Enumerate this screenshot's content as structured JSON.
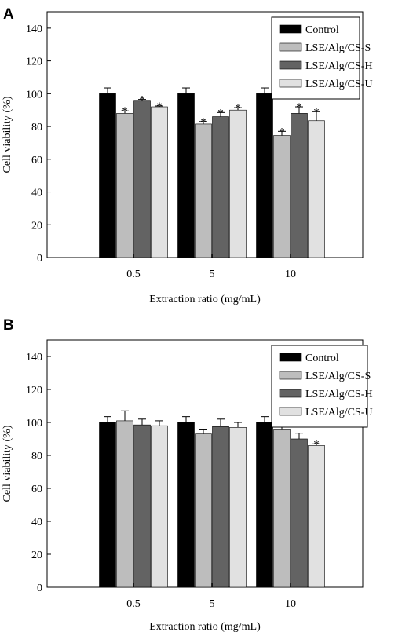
{
  "chart_data": [
    {
      "panel_label": "A",
      "type": "bar",
      "categories": [
        "0.5",
        "5",
        "10"
      ],
      "series": [
        {
          "name": "Control",
          "color": "#000000",
          "values": [
            100,
            100,
            100
          ],
          "errors": [
            3.5,
            3.5,
            3.5
          ],
          "significant": [
            false,
            false,
            false
          ]
        },
        {
          "name": "LSE/Alg/CS-S",
          "color": "#bdbdbd",
          "values": [
            88,
            81.5,
            74.5
          ],
          "errors": [
            1.5,
            1.5,
            2.5
          ],
          "significant": [
            true,
            true,
            true
          ]
        },
        {
          "name": "LSE/Alg/CS-H",
          "color": "#636363",
          "values": [
            95.5,
            86,
            88
          ],
          "errors": [
            1,
            2.5,
            4
          ],
          "significant": [
            true,
            true,
            true
          ]
        },
        {
          "name": "LSE/Alg/CS-U",
          "color": "#e1e1e1",
          "values": [
            92,
            90,
            83.5
          ],
          "errors": [
            0.5,
            1.5,
            5.5
          ],
          "significant": [
            true,
            true,
            true
          ]
        }
      ],
      "significance_marker": "*",
      "xlabel": "Extraction ratio (mg/mL)",
      "ylabel": "Cell viability (%)",
      "ylim": [
        0,
        150
      ],
      "yticks": [
        0,
        20,
        40,
        60,
        80,
        100,
        120,
        140
      ],
      "grid": false,
      "legend_position": "top-right"
    },
    {
      "panel_label": "B",
      "type": "bar",
      "categories": [
        "0.5",
        "5",
        "10"
      ],
      "series": [
        {
          "name": "Control",
          "color": "#000000",
          "values": [
            100,
            100,
            100
          ],
          "errors": [
            3.5,
            3.5,
            3.5
          ],
          "significant": [
            false,
            false,
            false
          ]
        },
        {
          "name": "LSE/Alg/CS-S",
          "color": "#bdbdbd",
          "values": [
            101,
            93,
            95.5
          ],
          "errors": [
            6,
            2.5,
            8.5
          ],
          "significant": [
            false,
            false,
            false
          ]
        },
        {
          "name": "LSE/Alg/CS-H",
          "color": "#636363",
          "values": [
            98.5,
            97.5,
            90
          ],
          "errors": [
            3.5,
            4.5,
            3.5
          ],
          "significant": [
            false,
            false,
            false
          ]
        },
        {
          "name": "LSE/Alg/CS-U",
          "color": "#e1e1e1",
          "values": [
            98,
            97,
            86
          ],
          "errors": [
            3,
            3,
            1
          ],
          "significant": [
            false,
            false,
            true
          ]
        }
      ],
      "significance_marker": "*",
      "xlabel": "Extraction ratio (mg/mL)",
      "ylabel": "Cell viability (%)",
      "ylim": [
        0,
        150
      ],
      "yticks": [
        0,
        20,
        40,
        60,
        80,
        100,
        120,
        140
      ],
      "grid": false,
      "legend_position": "top-right"
    }
  ]
}
